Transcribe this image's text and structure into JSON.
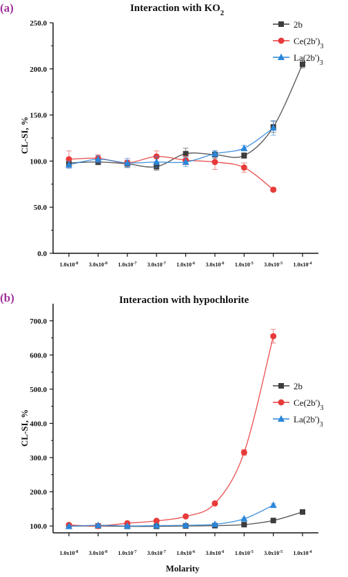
{
  "chart_data": [
    {
      "panel": "(a)",
      "type": "line",
      "title": "Interaction with KO",
      "title_sub": "2",
      "ylabel": "CL-SI, %",
      "xlabel": "",
      "ylim": [
        0,
        250
      ],
      "yticks": [
        "0.0",
        "50.0",
        "100.0",
        "150.0",
        "200.0",
        "250.0"
      ],
      "yticks_values": [
        0,
        50,
        100,
        150,
        200,
        250
      ],
      "categories": [
        "1.0x10-8",
        "3.0x10-8",
        "1.0x10-7",
        "3.0x10-7",
        "1.0x10-6",
        "3.0x10-6",
        "1.0x10-5",
        "3.0x10-5",
        "1.0x10-4"
      ],
      "category_mantissa": [
        "1.0x10",
        "3.0x10",
        "1.0x10",
        "3.0x10",
        "1.0x10",
        "3.0x10",
        "1.0x10",
        "3.0x10",
        "1.0x10"
      ],
      "category_exp": [
        "-8",
        "-8",
        "-7",
        "-7",
        "-6",
        "-6",
        "-5",
        "-5",
        "-4"
      ],
      "legend_position": "top-right",
      "series": [
        {
          "name": "2b",
          "color": "#3d3d3d",
          "marker": "square",
          "values": [
            98,
            99,
            97,
            94,
            108,
            107,
            106,
            137,
            205
          ],
          "errors": [
            3,
            3,
            4,
            4,
            6,
            4,
            3,
            6,
            4
          ]
        },
        {
          "name": "Ce(2b')3",
          "name_base": "Ce(2b')",
          "name_sub": "3",
          "color": "#e83a3a",
          "marker": "circle",
          "values": [
            102,
            103,
            98,
            105,
            101,
            99,
            93,
            69,
            null
          ],
          "errors": [
            9,
            4,
            3,
            6,
            5,
            8,
            5,
            2,
            null
          ]
        },
        {
          "name": "La(2b')3",
          "name_base": "La(2b')",
          "name_sub": "3",
          "color": "#2a86d9",
          "marker": "triangle",
          "values": [
            96,
            102,
            98,
            99,
            99,
            108,
            114,
            136,
            null
          ],
          "errors": [
            4,
            4,
            5,
            6,
            5,
            3,
            3,
            8,
            null
          ]
        }
      ]
    },
    {
      "panel": "(b)",
      "type": "line",
      "title": "Interaction with hypochlorite",
      "title_sub": "",
      "ylabel": "CL-SI, %",
      "xlabel": "Molarity",
      "ylim": [
        80,
        750
      ],
      "yticks": [
        "100.0",
        "200.0",
        "300.0",
        "400.0",
        "500.0",
        "600.0",
        "700.0"
      ],
      "yticks_values": [
        100,
        200,
        300,
        400,
        500,
        600,
        700
      ],
      "categories": [
        "1.0x10-8",
        "3.0x10-8",
        "1.0x10-7",
        "3.0x10-7",
        "1.0x10-6",
        "3.0x10-6",
        "1.0x10-5",
        "3.0x10-5",
        "1.0x10-4"
      ],
      "category_mantissa": [
        "1.0x10",
        "3.0x10",
        "1.0x10",
        "3.0x10",
        "1.0x10",
        "3.0x10",
        "1.0x10",
        "3.0x10",
        "1.0x10"
      ],
      "category_exp": [
        "-8",
        "-8",
        "-7",
        "-7",
        "-6",
        "-6",
        "-5",
        "-5",
        "-4"
      ],
      "legend_position": "right",
      "series": [
        {
          "name": "2b",
          "color": "#3d3d3d",
          "marker": "square",
          "values": [
            100,
            100,
            99,
            99,
            100,
            101,
            104,
            116,
            141
          ],
          "errors": [
            2,
            2,
            2,
            2,
            2,
            2,
            2,
            3,
            3
          ]
        },
        {
          "name": "Ce(2b')3",
          "name_base": "Ce(2b')",
          "name_sub": "3",
          "color": "#e83a3a",
          "marker": "circle",
          "values": [
            103,
            100,
            108,
            115,
            128,
            166,
            315,
            655,
            null
          ],
          "errors": [
            3,
            3,
            3,
            3,
            3,
            5,
            8,
            20,
            null
          ]
        },
        {
          "name": "La(2b')3",
          "name_base": "La(2b')",
          "name_sub": "3",
          "color": "#2a86d9",
          "marker": "triangle",
          "values": [
            99,
            102,
            100,
            101,
            102,
            105,
            121,
            161,
            null
          ],
          "errors": [
            3,
            3,
            3,
            3,
            3,
            3,
            3,
            4,
            null
          ]
        }
      ]
    }
  ]
}
